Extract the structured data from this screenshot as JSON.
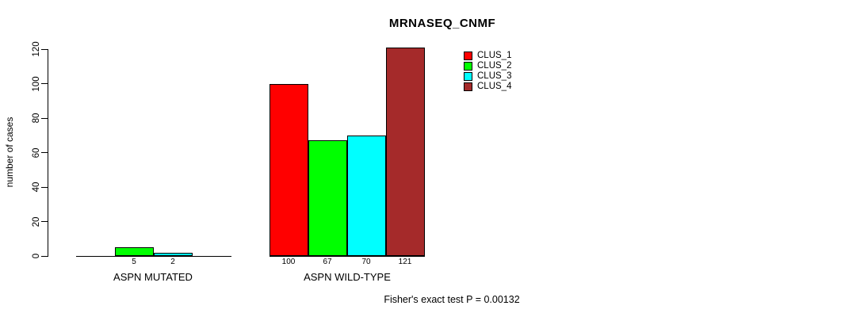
{
  "chart_data": {
    "type": "bar",
    "title": "MRNASEQ_CNMF",
    "ylabel": "number of cases",
    "ylim": [
      0,
      120
    ],
    "yticks": [
      0,
      20,
      40,
      60,
      80,
      100,
      120
    ],
    "groups": [
      "ASPN MUTATED",
      "ASPN WILD-TYPE"
    ],
    "series": [
      {
        "name": "CLUS_1",
        "color": "#ff0000",
        "values": [
          0,
          100
        ]
      },
      {
        "name": "CLUS_2",
        "color": "#00ff00",
        "values": [
          5,
          67
        ]
      },
      {
        "name": "CLUS_3",
        "color": "#00ffff",
        "values": [
          2,
          70
        ]
      },
      {
        "name": "CLUS_4",
        "color": "#a52a2a",
        "values": [
          0,
          121
        ]
      }
    ],
    "bar_value_labels": [
      [
        "",
        "5",
        "2",
        ""
      ],
      [
        "100",
        "67",
        "70",
        "121"
      ]
    ],
    "legend_position": "top-right-inside",
    "grid": false,
    "axis_color": "#000000",
    "annotation": "Fisher's exact test P = 0.00132"
  }
}
